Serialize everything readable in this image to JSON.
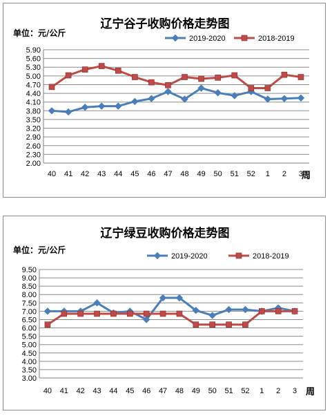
{
  "chart_data": [
    {
      "type": "line",
      "title": "辽宁谷子收购价格走势图",
      "unit_label": "单位：元/公斤",
      "xlabel": "周",
      "categories": [
        "40",
        "41",
        "42",
        "43",
        "44",
        "45",
        "46",
        "47",
        "48",
        "49",
        "50",
        "51",
        "52",
        "1",
        "2",
        "3"
      ],
      "ylim": [
        2.0,
        5.9
      ],
      "yticks": [
        2.0,
        2.3,
        2.6,
        2.9,
        3.2,
        3.5,
        3.8,
        4.1,
        4.4,
        4.7,
        5.0,
        5.3,
        5.6,
        5.9
      ],
      "ytick_labels": [
        "2.00",
        "2.30",
        "2.60",
        "2.90",
        "3.20",
        "3.50",
        "3.80",
        "4.10",
        "4.40",
        "4.70",
        "5.00",
        "5.30",
        "5.60",
        "5.90"
      ],
      "grid": true,
      "legend_position": "top-right",
      "series": [
        {
          "name": "2019-2020",
          "color": "#4a7ebb",
          "marker": "diamond",
          "values": [
            3.8,
            3.76,
            3.92,
            3.96,
            3.96,
            4.12,
            4.22,
            4.46,
            4.2,
            4.58,
            4.42,
            4.32,
            4.46,
            4.2,
            4.22,
            4.24
          ]
        },
        {
          "name": "2018-2019",
          "color": "#be4b48",
          "marker": "square",
          "values": [
            4.62,
            5.02,
            5.22,
            5.34,
            5.18,
            4.96,
            4.78,
            4.68,
            4.96,
            4.9,
            4.94,
            5.02,
            4.58,
            4.58,
            5.04,
            4.96
          ]
        }
      ]
    },
    {
      "type": "line",
      "title": "辽宁绿豆收购价格走势图",
      "unit_label": "单位：元/公斤",
      "xlabel": "周",
      "categories": [
        "40",
        "41",
        "42",
        "43",
        "44",
        "45",
        "46",
        "47",
        "48",
        "49",
        "50",
        "51",
        "52",
        "1",
        "2",
        "3"
      ],
      "ylim": [
        3.0,
        9.5
      ],
      "yticks": [
        3.0,
        3.5,
        4.0,
        4.5,
        5.0,
        5.5,
        6.0,
        6.5,
        7.0,
        7.5,
        8.0,
        8.5,
        9.0,
        9.5
      ],
      "ytick_labels": [
        "3.00",
        "3.50",
        "4.00",
        "4.50",
        "5.00",
        "5.50",
        "6.00",
        "6.50",
        "7.00",
        "7.50",
        "8.00",
        "8.50",
        "9.00",
        "9.50"
      ],
      "grid": true,
      "legend_position": "top-right",
      "series": [
        {
          "name": "2019-2020",
          "color": "#4a7ebb",
          "marker": "diamond",
          "values": [
            7.0,
            7.0,
            7.0,
            7.5,
            6.9,
            7.0,
            6.5,
            7.8,
            7.8,
            7.05,
            6.75,
            7.1,
            7.1,
            7.0,
            7.2,
            7.0
          ]
        },
        {
          "name": "2018-2019",
          "color": "#be4b48",
          "marker": "square",
          "values": [
            6.2,
            6.85,
            6.85,
            6.85,
            6.85,
            6.85,
            6.85,
            6.85,
            6.85,
            6.2,
            6.2,
            6.2,
            6.2,
            7.0,
            7.0,
            7.0
          ]
        }
      ]
    }
  ]
}
